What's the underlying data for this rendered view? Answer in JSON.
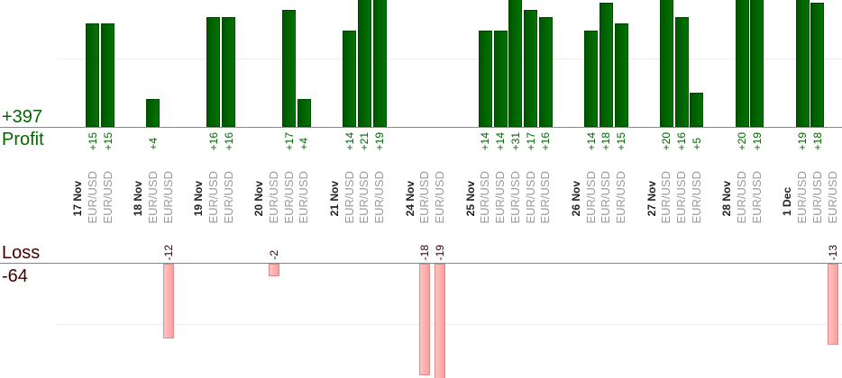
{
  "summary": {
    "profit_total": "+397",
    "profit_label": "Profit",
    "loss_label": "Loss",
    "loss_total": "-64"
  },
  "colors": {
    "profit": "#006600",
    "loss_text": "#400000",
    "loss_bar": "#ffb0b0",
    "profit_bar": "#006400"
  },
  "chart_data": {
    "type": "bar",
    "title": "",
    "profit_axis_gridline": 10,
    "loss_axis_gridline": -10,
    "days": [
      {
        "date": "17 Nov",
        "trades": [
          {
            "pair": "EUR/USD",
            "value": 15
          },
          {
            "pair": "EUR/USD",
            "value": 15
          }
        ]
      },
      {
        "date": "18 Nov",
        "trades": [
          {
            "pair": "EUR/USD",
            "value": 4
          },
          {
            "pair": "EUR/USD",
            "value": -12
          }
        ]
      },
      {
        "date": "19 Nov",
        "trades": [
          {
            "pair": "EUR/USD",
            "value": 16
          },
          {
            "pair": "EUR/USD",
            "value": 16
          }
        ]
      },
      {
        "date": "20 Nov",
        "trades": [
          {
            "pair": "EUR/USD",
            "value": -2
          },
          {
            "pair": "EUR/USD",
            "value": 17
          },
          {
            "pair": "EUR/USD",
            "value": 4
          }
        ]
      },
      {
        "date": "21 Nov",
        "trades": [
          {
            "pair": "EUR/USD",
            "value": 14
          },
          {
            "pair": "EUR/USD",
            "value": 21
          },
          {
            "pair": "EUR/USD",
            "value": 19
          }
        ]
      },
      {
        "date": "24 Nov",
        "trades": [
          {
            "pair": "EUR/USD",
            "value": -18
          },
          {
            "pair": "EUR/USD",
            "value": -19
          }
        ]
      },
      {
        "date": "25 Nov",
        "trades": [
          {
            "pair": "EUR/USD",
            "value": 14
          },
          {
            "pair": "EUR/USD",
            "value": 14
          },
          {
            "pair": "EUR/USD",
            "value": 31
          },
          {
            "pair": "EUR/USD",
            "value": 17
          },
          {
            "pair": "EUR/USD",
            "value": 16
          }
        ]
      },
      {
        "date": "26 Nov",
        "trades": [
          {
            "pair": "EUR/USD",
            "value": 14
          },
          {
            "pair": "EUR/USD",
            "value": 18
          },
          {
            "pair": "EUR/USD",
            "value": 15
          }
        ]
      },
      {
        "date": "27 Nov",
        "trades": [
          {
            "pair": "EUR/USD",
            "value": 20
          },
          {
            "pair": "EUR/USD",
            "value": 16
          },
          {
            "pair": "EUR/USD",
            "value": 5
          }
        ]
      },
      {
        "date": "28 Nov",
        "trades": [
          {
            "pair": "EUR/USD",
            "value": 20
          },
          {
            "pair": "EUR/USD",
            "value": 19
          }
        ]
      },
      {
        "date": "1 Dec",
        "trades": [
          {
            "pair": "EUR/USD",
            "value": 19
          },
          {
            "pair": "EUR/USD",
            "value": 18
          },
          {
            "pair": "EUR/USD",
            "value": -13
          }
        ]
      }
    ]
  }
}
